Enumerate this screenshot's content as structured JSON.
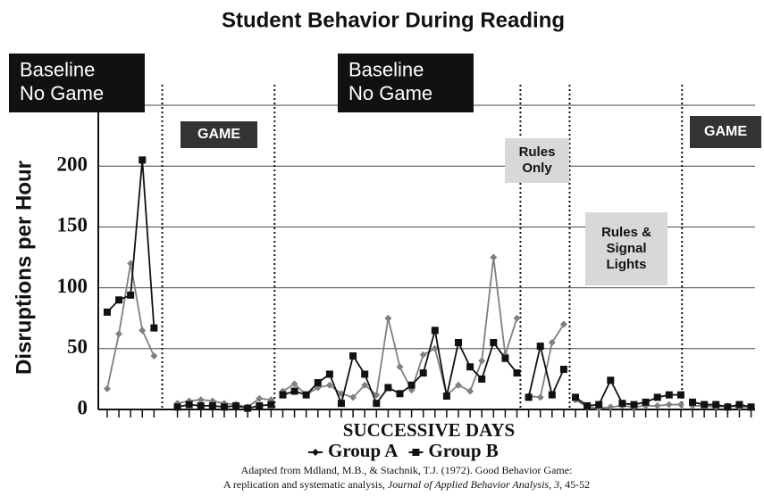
{
  "chart_data": {
    "type": "line",
    "title": "Student Behavior During Reading",
    "ylabel": "Disruptions per Hour",
    "xlabel": "SUCCESSIVE DAYS",
    "x": [
      1,
      2,
      3,
      4,
      5,
      7,
      8,
      9,
      10,
      11,
      12,
      13,
      14,
      15,
      16,
      17,
      18,
      19,
      20,
      21,
      22,
      23,
      24,
      25,
      26,
      27,
      28,
      29,
      30,
      31,
      32,
      33,
      34,
      35,
      36,
      37,
      38,
      39,
      40,
      41,
      42,
      43,
      44,
      45,
      46,
      47,
      48,
      49,
      50,
      51,
      52,
      53,
      54,
      55,
      56
    ],
    "xlim": [
      0.24,
      56.34
    ],
    "ylim": [
      0,
      250
    ],
    "yticks": [
      0,
      50,
      100,
      150,
      200
    ],
    "grid": true,
    "phase_lines": [
      5.7,
      15.3,
      36.3,
      40.5,
      50.1
    ],
    "series": [
      {
        "name": "Group A",
        "color": "#808080",
        "marker": "diamond",
        "values": [
          17,
          62,
          120,
          65,
          44,
          5,
          7,
          8,
          7,
          5,
          4,
          2,
          9,
          8,
          15,
          21,
          12,
          18,
          20,
          13,
          10,
          20,
          12,
          75,
          35,
          16,
          45,
          50,
          12,
          20,
          15,
          40,
          125,
          45,
          75,
          11,
          10,
          55,
          70,
          8,
          2,
          1,
          2,
          3,
          2,
          3,
          3,
          4,
          4,
          3,
          3,
          2,
          3,
          2,
          2
        ]
      },
      {
        "name": "Group B",
        "color": "#111111",
        "marker": "square",
        "values": [
          80,
          90,
          94,
          205,
          67,
          2,
          4,
          3,
          3,
          2,
          3,
          1,
          3,
          4,
          12,
          15,
          12,
          22,
          29,
          5,
          44,
          29,
          5,
          18,
          13,
          20,
          30,
          65,
          11,
          55,
          35,
          25,
          55,
          42,
          30,
          10,
          52,
          12,
          33,
          10,
          3,
          4,
          24,
          5,
          4,
          6,
          10,
          12,
          12,
          6,
          4,
          4,
          2,
          4,
          2
        ]
      }
    ],
    "annotations": [
      {
        "lines": [
          "Baseline",
          "No Game"
        ],
        "style": "dark"
      },
      {
        "lines": [
          "GAME"
        ],
        "style": "dim"
      },
      {
        "lines": [
          "Baseline",
          "No Game"
        ],
        "style": "dark"
      },
      {
        "lines": [
          "Rules",
          "Only"
        ],
        "style": "light"
      },
      {
        "lines": [
          "Rules &",
          "Signal",
          "Lights"
        ],
        "style": "light"
      },
      {
        "lines": [
          "GAME"
        ],
        "style": "dim"
      }
    ],
    "source": {
      "line1": "Adapted  from  Mdland, M.B., & Stachnik, T.J. (1972).  Good Behavior Game:",
      "line2_start": "A replication and systematic analysis, ",
      "line2_journal": "Journal of Applied Behavior Analysis, 3,",
      "line2_end": " 45-52"
    }
  }
}
